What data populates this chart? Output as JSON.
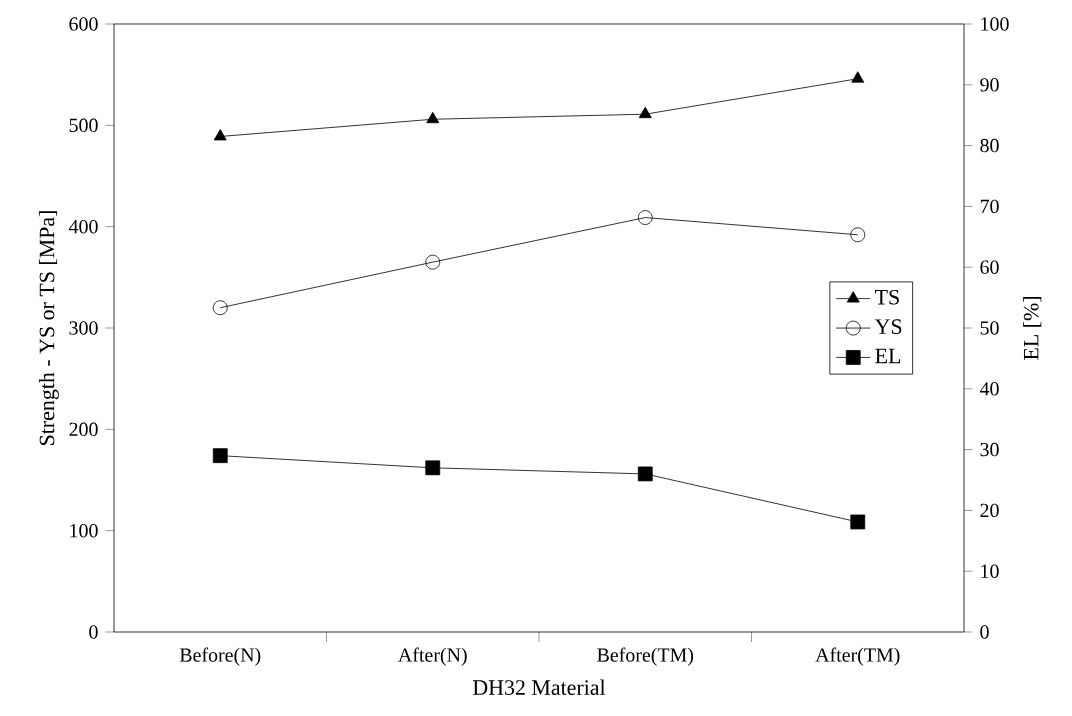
{
  "chart_data": {
    "type": "line",
    "xlabel": "DH32 Material",
    "ylabel": "Strength - YS or TS [MPa]",
    "y2label": "EL [%]",
    "categories": [
      "Before(N)",
      "After(N)",
      "Before(TM)",
      "After(TM)"
    ],
    "series": [
      {
        "name": "TS",
        "color": "#000000",
        "marker": "triangle",
        "values": [
          489,
          506,
          511,
          546
        ]
      },
      {
        "name": "YS",
        "color": "#000000",
        "marker": "circle",
        "values": [
          320,
          365,
          409,
          392
        ]
      },
      {
        "name": "EL",
        "color": "#000000",
        "marker": "square",
        "axis": "y2",
        "values": [
          29.0,
          27.0,
          26.0,
          18.1
        ]
      }
    ],
    "ylim": [
      0,
      600
    ],
    "yticks": [
      0,
      100,
      200,
      300,
      400,
      500,
      600
    ],
    "y2lim": [
      0,
      100
    ],
    "y2ticks": [
      0,
      10,
      20,
      30,
      40,
      50,
      60,
      70,
      80,
      90,
      100
    ],
    "grid": false,
    "legend": "right",
    "line_style": "solid"
  }
}
